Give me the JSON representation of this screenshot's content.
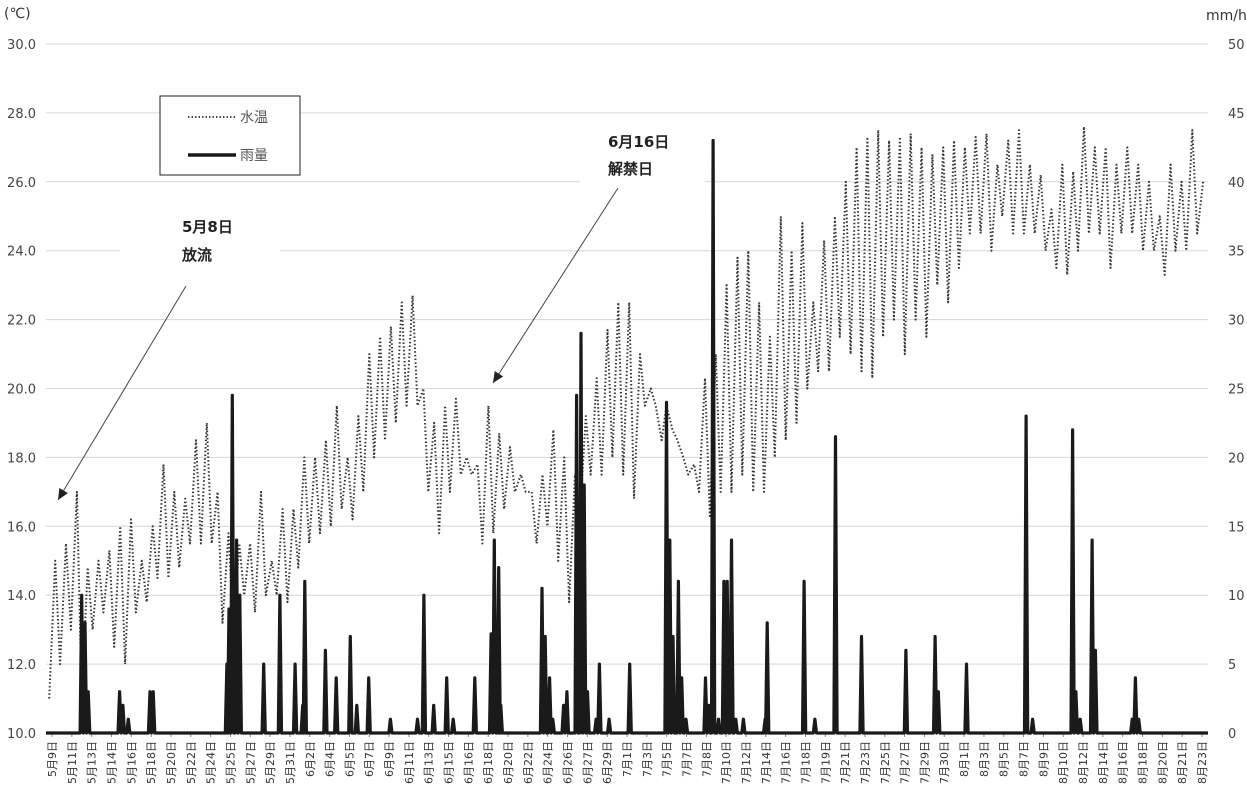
{
  "chart_data": {
    "type": "line",
    "y_unit_left": "(℃)",
    "y_unit_right": "mm/h",
    "ylim_left": [
      10,
      30
    ],
    "ylim_right": [
      0,
      50
    ],
    "y_ticks_left": [
      "10.0",
      "12.0",
      "14.0",
      "16.0",
      "18.0",
      "20.0",
      "22.0",
      "24.0",
      "26.0",
      "28.0",
      "30.0"
    ],
    "y_ticks_right": [
      "0",
      "5",
      "10",
      "15",
      "20",
      "25",
      "30",
      "35",
      "40",
      "45",
      "50"
    ],
    "grid": true,
    "legend_position": "top-left",
    "x_labels": [
      "5月9日",
      "5月11日",
      "5月13日",
      "5月14日",
      "5月16日",
      "5月18日",
      "5月20日",
      "5月22日",
      "5月24日",
      "5月25日",
      "5月27日",
      "5月29日",
      "5月31日",
      "6月2日",
      "6月4日",
      "6月5日",
      "6月7日",
      "6月9日",
      "6月11日",
      "6月13日",
      "6月15日",
      "6月16日",
      "6月18日",
      "6月20日",
      "6月22日",
      "6月24日",
      "6月26日",
      "6月27日",
      "6月29日",
      "7月1日",
      "7月3日",
      "7月5日",
      "7月7日",
      "7月8日",
      "7月10日",
      "7月12日",
      "7月14日",
      "7月16日",
      "7月18日",
      "7月19日",
      "7月21日",
      "7月23日",
      "7月25日",
      "7月27日",
      "7月29日",
      "7月30日",
      "8月1日",
      "8月3日",
      "8月5日",
      "8月7日",
      "8月9日",
      "8月10日",
      "8月12日",
      "8月14日",
      "8月16日",
      "8月18日",
      "8月20日",
      "8月21日",
      "8月23日"
    ],
    "series": [
      {
        "name": "水温",
        "axis": "left",
        "style": "dotted",
        "color": "#333333",
        "x_day": [
          0,
          1,
          2,
          3,
          4,
          5,
          6,
          7,
          8,
          9,
          10,
          11,
          12,
          13,
          14,
          15,
          16,
          17,
          18,
          19,
          20,
          21,
          22,
          23,
          24,
          25,
          26,
          27,
          28,
          29,
          30,
          31,
          32,
          33,
          34,
          35,
          36,
          37,
          38,
          39,
          40,
          41,
          42,
          43,
          44,
          45,
          46,
          47,
          48,
          49,
          50,
          51,
          52,
          53,
          54,
          55,
          56,
          57,
          58,
          59,
          60,
          61,
          62,
          63,
          64,
          65,
          66,
          67,
          68,
          69,
          70,
          71,
          72,
          73,
          74,
          75,
          76,
          77,
          78,
          79,
          80,
          81,
          82,
          83,
          84,
          85,
          86,
          87,
          88,
          89,
          90,
          91,
          92,
          93,
          94,
          95,
          96,
          97,
          98,
          99,
          100,
          101,
          102,
          103,
          104,
          105,
          106
        ],
        "daily_min": [
          11.0,
          12.0,
          13.0,
          11.0,
          13.0,
          13.5,
          12.5,
          12.0,
          13.5,
          13.8,
          14.5,
          14.5,
          14.8,
          15.5,
          15.5,
          15.5,
          13.2,
          13.0,
          14.0,
          13.5,
          14.0,
          14.0,
          13.8,
          14.8,
          15.5,
          15.8,
          16.0,
          16.5,
          16.2,
          17.0,
          18.0,
          18.5,
          19.0,
          19.5,
          19.5,
          17.0,
          15.8,
          17.0,
          17.5,
          17.5,
          15.5,
          15.8,
          16.5,
          17.0,
          17.0,
          15.5,
          16.0,
          15.0,
          13.8,
          16.3,
          17.5,
          17.5,
          18.0,
          17.5,
          16.8,
          19.5,
          19.5,
          19.5,
          18.5,
          17.5,
          17.0,
          16.3,
          17.0,
          17.0,
          17.5,
          17.0,
          17.0,
          18.0,
          18.5,
          19.0,
          20.0,
          20.5,
          20.5,
          21.5,
          21.0,
          20.5,
          20.3,
          21.5,
          22.0,
          21.0,
          22.0,
          21.5,
          23.0,
          22.5,
          23.5,
          24.5,
          24.5,
          24.0,
          25.0,
          24.5,
          24.5,
          24.5,
          24.0,
          23.5,
          23.3,
          24.0,
          24.5,
          24.5,
          23.5,
          24.5,
          24.5,
          24.0,
          24.0,
          23.3,
          24.0,
          24.0,
          24.5
        ],
        "daily_max": [
          15.0,
          15.5,
          17.0,
          14.8,
          15.0,
          15.3,
          16.0,
          16.2,
          15.0,
          16.0,
          17.8,
          17.0,
          16.8,
          18.5,
          19.0,
          17.0,
          15.8,
          15.5,
          15.5,
          17.0,
          15.0,
          16.5,
          16.5,
          18.0,
          18.0,
          18.5,
          19.5,
          18.0,
          19.2,
          21.0,
          21.5,
          21.8,
          22.5,
          22.7,
          20.0,
          19.0,
          19.5,
          19.7,
          18.0,
          17.8,
          19.5,
          18.7,
          18.3,
          17.5,
          17.0,
          17.5,
          18.8,
          18.0,
          17.5,
          19.2,
          20.3,
          21.7,
          22.5,
          22.5,
          21.0,
          20.0,
          18.5,
          18.8,
          18.0,
          17.8,
          20.3,
          21.0,
          23.0,
          23.8,
          24.0,
          22.5,
          21.5,
          25.0,
          24.0,
          24.8,
          22.5,
          24.3,
          25.0,
          26.0,
          27.0,
          27.3,
          27.5,
          27.2,
          27.3,
          27.4,
          27.0,
          26.8,
          27.0,
          27.2,
          27.0,
          27.3,
          27.4,
          26.5,
          27.2,
          27.5,
          26.5,
          26.2,
          25.2,
          26.5,
          26.3,
          27.6,
          27.0,
          27.0,
          26.5,
          27.0,
          26.5,
          26.0,
          25.0,
          26.5,
          26.0,
          27.5,
          26.0
        ]
      },
      {
        "name": "雨量",
        "axis": "right",
        "style": "solid",
        "color": "#1a1a1a",
        "events": [
          [
            3,
            10
          ],
          [
            3.3,
            8
          ],
          [
            3.6,
            3
          ],
          [
            6.5,
            3
          ],
          [
            6.8,
            2
          ],
          [
            7.3,
            1
          ],
          [
            9.3,
            3
          ],
          [
            9.6,
            3
          ],
          [
            16.4,
            5
          ],
          [
            16.6,
            9
          ],
          [
            16.9,
            24.5
          ],
          [
            17.3,
            14
          ],
          [
            17.6,
            10
          ],
          [
            19.8,
            5
          ],
          [
            21.3,
            10
          ],
          [
            22.7,
            5
          ],
          [
            23.4,
            2
          ],
          [
            23.6,
            11
          ],
          [
            25.5,
            6
          ],
          [
            26.5,
            4
          ],
          [
            27.8,
            7
          ],
          [
            28.4,
            2
          ],
          [
            29.5,
            4
          ],
          [
            31.5,
            1
          ],
          [
            34.0,
            1
          ],
          [
            34.6,
            10
          ],
          [
            35.5,
            2
          ],
          [
            36.7,
            4
          ],
          [
            37.3,
            1
          ],
          [
            39.3,
            4
          ],
          [
            40.8,
            7.2
          ],
          [
            41.1,
            14
          ],
          [
            41.5,
            12
          ],
          [
            41.7,
            2
          ],
          [
            45.8,
            7
          ],
          [
            45.5,
            10.5
          ],
          [
            46.2,
            4
          ],
          [
            46.5,
            1
          ],
          [
            47.5,
            2
          ],
          [
            47.8,
            3
          ],
          [
            48.7,
            24.5
          ],
          [
            49.1,
            29
          ],
          [
            49.4,
            18
          ],
          [
            49.7,
            3
          ],
          [
            50.5,
            1
          ],
          [
            50.8,
            5
          ],
          [
            51.7,
            1
          ],
          [
            53.6,
            5
          ],
          [
            57.0,
            24
          ],
          [
            57.3,
            14
          ],
          [
            57.6,
            7
          ],
          [
            58.1,
            11
          ],
          [
            58.4,
            4
          ],
          [
            58.8,
            1
          ],
          [
            60.6,
            4
          ],
          [
            60.9,
            2
          ],
          [
            61.3,
            43
          ],
          [
            61.8,
            1
          ],
          [
            62.3,
            11
          ],
          [
            62.6,
            11
          ],
          [
            63.0,
            14
          ],
          [
            63.4,
            1
          ],
          [
            64.1,
            1
          ],
          [
            66.1,
            1
          ],
          [
            66.3,
            8
          ],
          [
            69.7,
            11
          ],
          [
            70.7,
            1
          ],
          [
            72.6,
            21.5
          ],
          [
            75.0,
            7
          ],
          [
            79.1,
            6
          ],
          [
            81.8,
            7
          ],
          [
            82.1,
            3
          ],
          [
            84.7,
            5
          ],
          [
            90.2,
            23
          ],
          [
            90.8,
            1
          ],
          [
            94.5,
            22
          ],
          [
            94.8,
            3
          ],
          [
            95.2,
            1
          ],
          [
            96.3,
            14
          ],
          [
            96.6,
            6
          ],
          [
            100.0,
            1
          ],
          [
            100.3,
            4
          ],
          [
            100.6,
            1
          ]
        ]
      }
    ],
    "annotations": [
      {
        "line1": "5月8日",
        "line2": "放流",
        "target_day": -0.3,
        "target_temp": 16.8
      },
      {
        "line1": "6月16日",
        "line2": "解禁日",
        "target_day": 38.0,
        "target_temp": 19.9
      }
    ]
  }
}
